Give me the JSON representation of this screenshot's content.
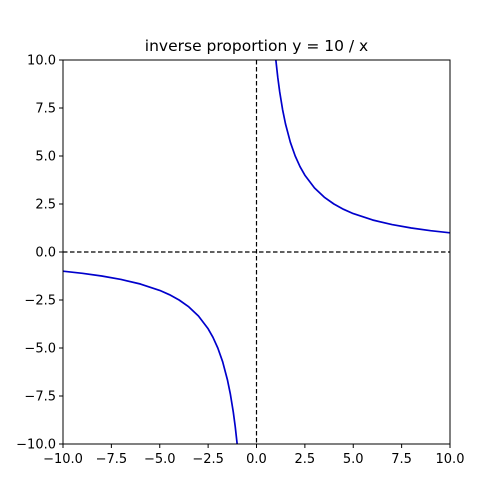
{
  "chart_data": {
    "type": "line",
    "title": "inverse proportion y = 10 / x",
    "xlabel": "",
    "ylabel": "",
    "xlim": [
      -10,
      10
    ],
    "ylim": [
      -10,
      10
    ],
    "x_ticks": [
      -10,
      -7.5,
      -5,
      -2.5,
      0,
      2.5,
      5,
      7.5,
      10
    ],
    "y_ticks": [
      -10,
      -7.5,
      -5,
      -2.5,
      0,
      2.5,
      5,
      7.5,
      10
    ],
    "x_tick_labels": [
      "−10.0",
      "−7.5",
      "−5.0",
      "−2.5",
      "0.0",
      "2.5",
      "5.0",
      "7.5",
      "10.0"
    ],
    "y_tick_labels": [
      "−10.0",
      "−7.5",
      "−5.0",
      "−2.5",
      "0.0",
      "2.5",
      "5.0",
      "7.5",
      "10.0"
    ],
    "grid": false,
    "legend": "none",
    "function": "y = 10 / x",
    "series": [
      {
        "color": "#0000cc",
        "segments": [
          {
            "x": [
              -10,
              -9,
              -8,
              -7,
              -6,
              -5,
              -4.5,
              -4,
              -3.5,
              -3,
              -2.5,
              -2.25,
              -2,
              -1.75,
              -1.5,
              -1.35,
              -1.2,
              -1.1,
              -1.0
            ],
            "y": [
              -1,
              -1.111,
              -1.25,
              -1.429,
              -1.667,
              -2,
              -2.222,
              -2.5,
              -2.857,
              -3.333,
              -4,
              -4.444,
              -5,
              -5.714,
              -6.667,
              -7.407,
              -8.333,
              -9.091,
              -10
            ]
          },
          {
            "x": [
              1.0,
              1.1,
              1.2,
              1.35,
              1.5,
              1.75,
              2,
              2.25,
              2.5,
              3,
              3.5,
              4,
              4.5,
              5,
              6,
              7,
              8,
              9,
              10
            ],
            "y": [
              10,
              9.091,
              8.333,
              7.407,
              6.667,
              5.714,
              5,
              4.444,
              4,
              3.333,
              2.857,
              2.5,
              2.222,
              2,
              1.667,
              1.429,
              1.25,
              1.111,
              1
            ]
          }
        ]
      }
    ],
    "reference_lines": [
      {
        "orientation": "horizontal",
        "y": 0,
        "style": "dashed",
        "color": "#000000"
      },
      {
        "orientation": "vertical",
        "x": 0,
        "style": "dashed",
        "color": "#000000"
      }
    ]
  }
}
